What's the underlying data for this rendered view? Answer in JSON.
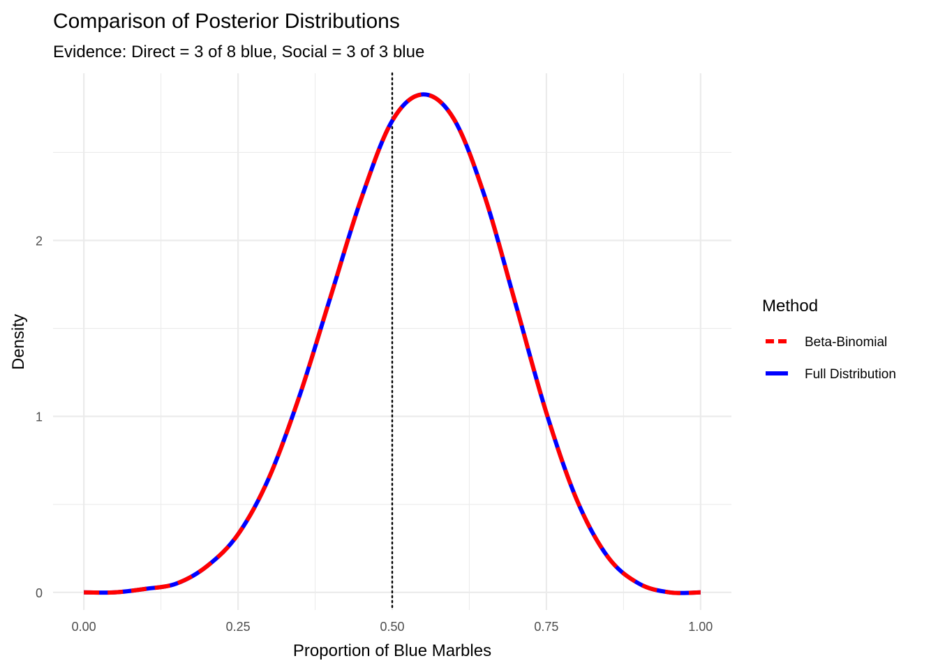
{
  "chart_data": {
    "type": "line",
    "title": "Comparison of Posterior Distributions",
    "subtitle": "Evidence: Direct = 3 of 8 blue, Social = 3 of 3 blue",
    "xlabel": "Proportion of Blue Marbles",
    "ylabel": "Density",
    "xlim": [
      -0.05,
      1.05
    ],
    "ylim": [
      -0.1,
      2.95
    ],
    "x_ticks": [
      0.0,
      0.25,
      0.5,
      0.75,
      1.0
    ],
    "x_tick_labels": [
      "0.00",
      "0.25",
      "0.50",
      "0.75",
      "1.00"
    ],
    "x_minor_ticks": [
      0.125,
      0.375,
      0.625,
      0.875
    ],
    "y_ticks": [
      0,
      1,
      2
    ],
    "y_tick_labels": [
      "0",
      "1",
      "2"
    ],
    "y_minor_ticks": [
      0.5,
      1.5,
      2.5
    ],
    "grid": true,
    "vline": {
      "x": 0.5,
      "style": "dotted",
      "color": "#000000"
    },
    "legend": {
      "title": "Method",
      "position": "right",
      "entries": [
        "Beta-Binomial",
        "Full Distribution"
      ]
    },
    "series": [
      {
        "name": "Full Distribution",
        "color": "#0000ff",
        "line": "solid",
        "x": [
          0.0,
          0.05,
          0.1,
          0.15,
          0.2,
          0.25,
          0.3,
          0.35,
          0.4,
          0.45,
          0.5,
          0.55,
          0.6,
          0.65,
          0.7,
          0.75,
          0.8,
          0.85,
          0.9,
          0.95,
          1.0
        ],
        "y": [
          0.0,
          0.0,
          0.02,
          0.05,
          0.15,
          0.33,
          0.65,
          1.12,
          1.68,
          2.24,
          2.68,
          2.83,
          2.69,
          2.25,
          1.64,
          1.02,
          0.52,
          0.2,
          0.05,
          0.0,
          0.0
        ]
      },
      {
        "name": "Beta-Binomial",
        "color": "#ff0000",
        "line": "dashed",
        "x": [
          0.0,
          0.05,
          0.1,
          0.15,
          0.2,
          0.25,
          0.3,
          0.35,
          0.4,
          0.45,
          0.5,
          0.55,
          0.6,
          0.65,
          0.7,
          0.75,
          0.8,
          0.85,
          0.9,
          0.95,
          1.0
        ],
        "y": [
          0.0,
          0.0,
          0.02,
          0.05,
          0.15,
          0.33,
          0.65,
          1.12,
          1.68,
          2.24,
          2.68,
          2.83,
          2.69,
          2.25,
          1.64,
          1.02,
          0.52,
          0.2,
          0.05,
          0.0,
          0.0
        ]
      }
    ]
  }
}
